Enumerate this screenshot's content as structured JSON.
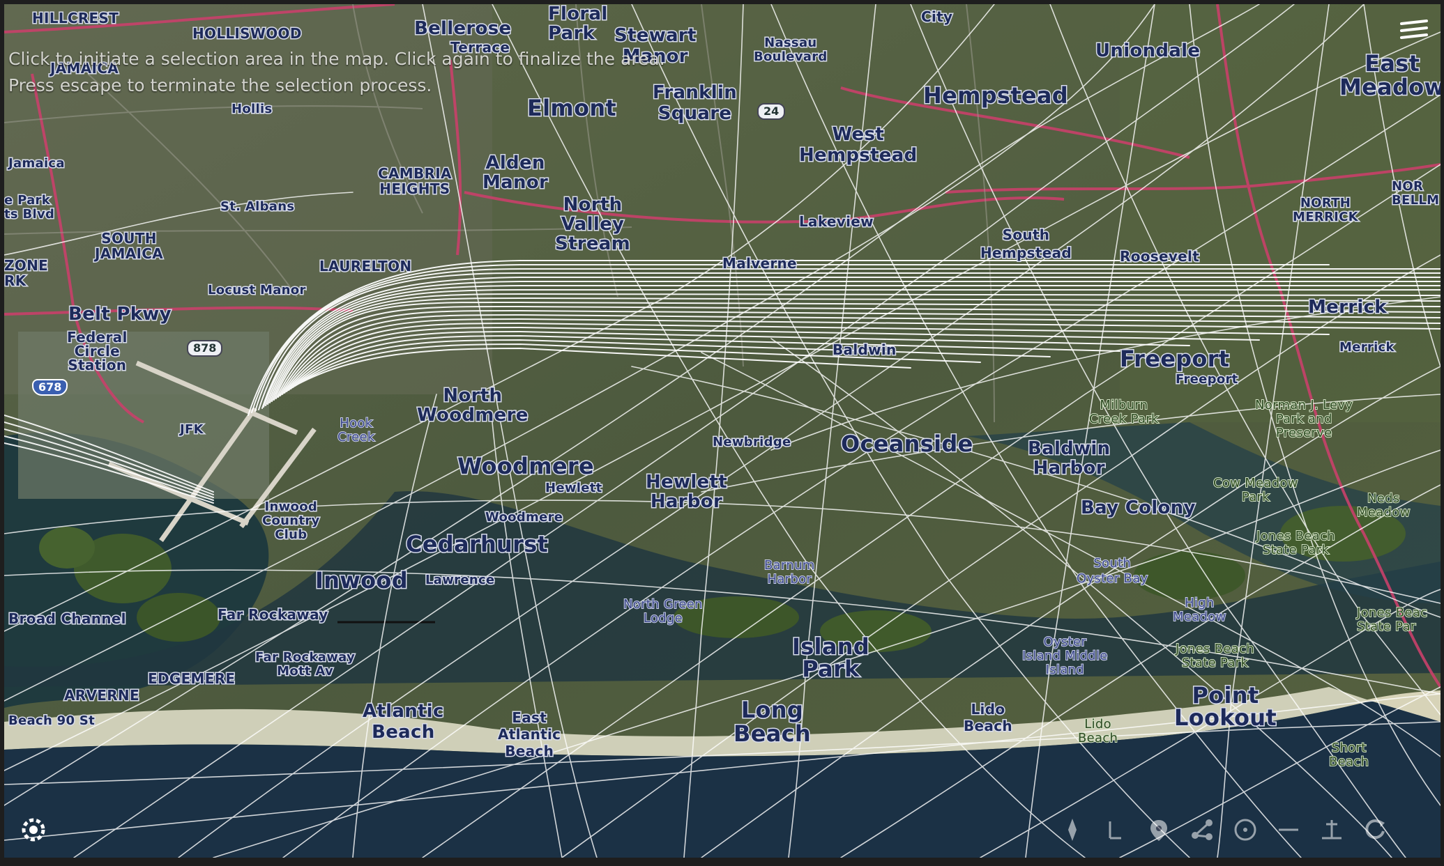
{
  "hint": {
    "line1": "Click to initiate a selection area in the map. Click again to finalize the area.",
    "line2": "Press escape to terminate the selection process."
  },
  "controls": {
    "menu_icon": "menu-icon",
    "settings_icon": "gear-icon",
    "tools": [
      "compass-icon",
      "pan-icon",
      "location-icon",
      "share-icon",
      "zoom-out-icon",
      "zoom-in-icon",
      "tilt-icon",
      "rotate-icon"
    ]
  },
  "colors": {
    "land": "#4d5a3e",
    "water": "#1e3346",
    "road": "#c9406a",
    "track": "#ffffff"
  },
  "places": {
    "hillcrest": "HILLCREST",
    "holliswood": "HOLLISWOOD",
    "bellerose": "Bellerose",
    "bellerose_terrace": "Terrace",
    "floral_park": "Floral\nPark",
    "stewart_manor": "Stewart\nManor",
    "nassau_blvd": "Nassau\nBoulevard",
    "city": "City",
    "uniondale": "Uniondale",
    "east_meadow": "East\nMeadow",
    "jamaica": "JAMAICA",
    "hollis": "Hollis",
    "elmont": "Elmont",
    "franklin_square": "Franklin\nSquare",
    "hempstead": "Hempstead",
    "jamaica_station": "Jamaica",
    "west_hempstead": "West\nHempstead",
    "cambria_heights": "CAMBRIA\nHEIGHTS",
    "alden_manor": "Alden\nManor",
    "st_albans": "St. Albans",
    "park_blvd": "e Park\nts Blvd",
    "north_valley_stream": "North\nValley\nStream",
    "lakeview": "Lakeview",
    "south_hempstead": "South\nHempstead",
    "roosevelt": "Roosevelt",
    "north_merrick": "NORTH\nMERRICK",
    "north_bellmore": "NOR\nBELLM",
    "south_jamaica": "SOUTH\nJAMAICA",
    "ozone": "ZONE\nRK",
    "laurelton": "LAURELTON",
    "locust_manor": "Locust Manor",
    "malverne": "Malverne",
    "belt_pkwy": "Belt Pkwy",
    "federal_circle": "Federal\nCircle\nStation",
    "merrick": "Merrick",
    "merrick_station": "Merrick",
    "freeport": "Freeport",
    "freeport_station": "Freeport",
    "baldwin": "Baldwin",
    "jfk": "JFK",
    "woodmere_n": "North\nWoodmere",
    "hook_creek": "Hook\nCreek",
    "milburn": "Milburn\nCreek Park",
    "levy_park": "Norman J. Levy\nPark and\nPreserve",
    "oceanside": "Oceanside",
    "baldwin_harbor": "Baldwin\nHarbor",
    "woodmere": "Woodmere",
    "hewlett": "Hewlett",
    "hewlett_harbor": "Hewlett\nHarbor",
    "cow_meadow": "Cow Meadow\nPark",
    "newbridge": "Newbridge",
    "inwood_cc": "Inwood\nCountry\nClub",
    "woodmere_station": "Woodmere",
    "bay_colony": "Bay Colony",
    "neds_meadow": "Neds\nMeadow",
    "cedarhurst": "Cedarhurst",
    "jones_beach_sp": "Jones Beach\nState Park",
    "south_oyster_bay": "South\nOyster Bay",
    "inwood": "Inwood",
    "lawrence": "Lawrence",
    "north_green": "North Green\nLodge",
    "far_rockaway": "Far Rockaway",
    "broad_channel": "Broad Channel",
    "barnum": "Barnum\nHarbor",
    "high_meadow": "High\nMeadow",
    "jones_beach_sp2": "Jones Beac\nState Par",
    "far_rockaway_mott": "Far Rockaway\nMott Av",
    "island_park": "Island\nPark",
    "oyster_island": "Oyster\nIsland Middle\nIsland",
    "jones_sp3": "Jones Beach\nState Park",
    "arverne": "ARVERNE",
    "edgemere": "EDGEMERE",
    "point_lookout": "Point\nLookout",
    "beach_90": "Beach 90 St",
    "atlantic_beach": "Atlantic\nBeach",
    "east_atlantic": "East\nAtlantic\nBeach",
    "long_beach": "Long\nBeach",
    "lido_beach": "Lido\nBeach",
    "lido_beach2": "Lido\nBeach",
    "short_beach": "Short\nBeach"
  },
  "shields": {
    "rt24": "24",
    "rt878": "878",
    "i678": "678"
  }
}
